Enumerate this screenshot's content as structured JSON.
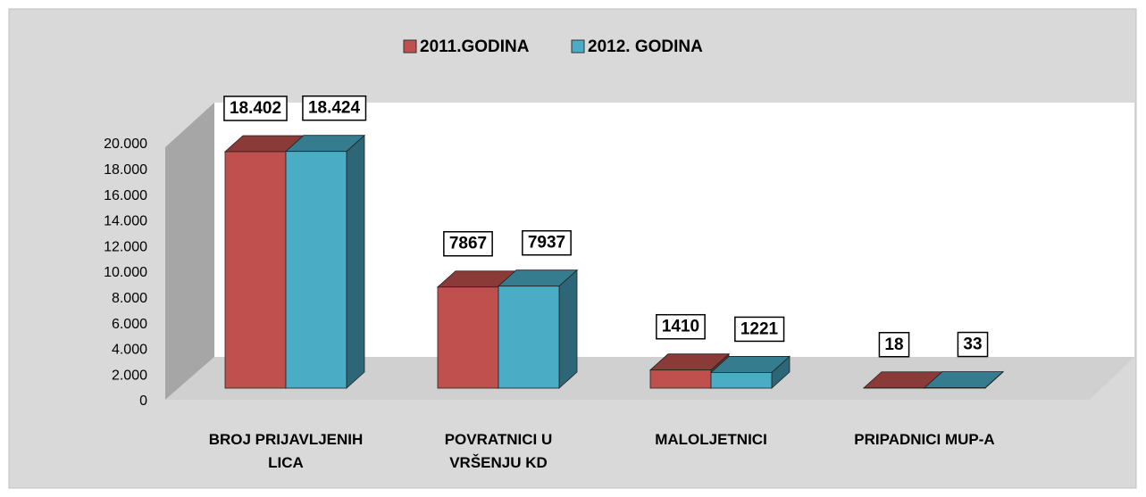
{
  "chart_data": {
    "type": "bar3d",
    "categories": [
      "BROJ PRIJAVLJENIH LICA",
      "POVRATNICI U VRŠENJU KD",
      "MALOLJETNICI",
      "PRIPADNICI MUP-A"
    ],
    "series": [
      {
        "name": "2011.GODINA",
        "color": "#c0504d",
        "values": [
          18402,
          7867,
          1410,
          18
        ],
        "value_labels": [
          "18.402",
          "7867",
          "1410",
          "18"
        ]
      },
      {
        "name": "2012. GODINA",
        "color": "#4bacc6",
        "values": [
          18424,
          7937,
          1221,
          33
        ],
        "value_labels": [
          "18.424",
          "7937",
          "1221",
          "33"
        ]
      }
    ],
    "ylim": [
      0,
      20000
    ],
    "yticks": [
      0,
      {
        "value": 2000,
        "label": "2.000"
      },
      {
        "value": 4000,
        "label": "4.000"
      },
      {
        "value": 6000,
        "label": "6.000"
      },
      {
        "value": 8000,
        "label": "8.000"
      },
      {
        "value": 10000,
        "label": "10.000"
      },
      {
        "value": 12000,
        "label": "12.000"
      },
      {
        "value": 14000,
        "label": "14.000"
      },
      {
        "value": 16000,
        "label": "16.000"
      },
      {
        "value": 18000,
        "label": "18.000"
      },
      {
        "value": 20000,
        "label": "20.000"
      }
    ],
    "legend": "top"
  }
}
